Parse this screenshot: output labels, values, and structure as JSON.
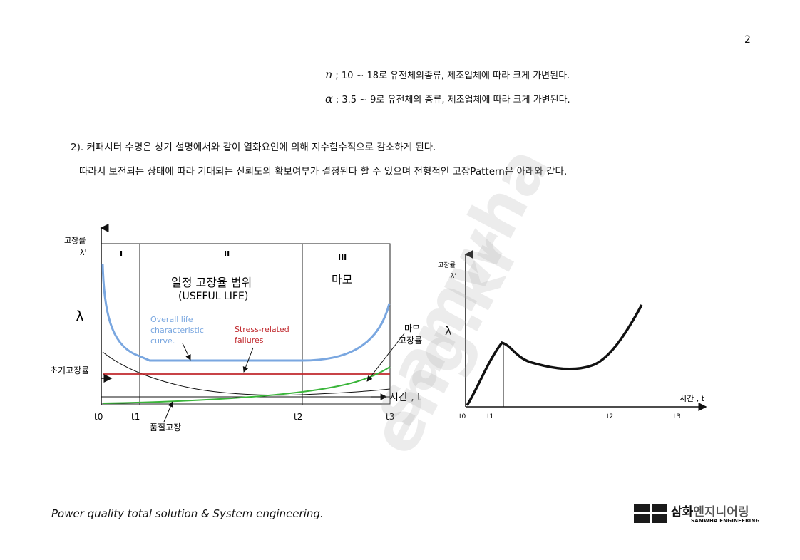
{
  "page_number": "2",
  "params": [
    {
      "symbol": "n",
      "text": "; 10 ~ 18로 유전체의종류, 제조업체에 따라 크게 가변된다."
    },
    {
      "symbol": "α",
      "text": "; 3.5 ~ 9로 유전체의 종류, 제조업체에 따라 크게 가변된다."
    }
  ],
  "paragraphs": [
    "2). 커패시터 수명은 상기 설명에서와 같이 열화요인에 의해 지수함수적으로 감소하게 된다.",
    "따라서 보전되는 상태에 따라 기대되는 신뢰도의 확보여부가 결정된다 할 수 있으며 전형적인 고장Pattern은 아래와 같다."
  ],
  "watermark": {
    "line1": "samwha",
    "line2": "eng.kr"
  },
  "left_chart": {
    "y_axis_label_1": "고장률",
    "y_axis_label_2": "λ'",
    "lambda_label": "λ",
    "early_failure_label": "초기고장률",
    "regions": [
      "I",
      "II",
      "III"
    ],
    "useful_life_ko": "일정 고장율 범위",
    "useful_life_en": "(USEFUL LIFE)",
    "wearout_ko": "마모",
    "overall_curve_label": [
      "Overall life",
      "characteristic",
      "curve."
    ],
    "stress_label": [
      "Stress-related",
      "failures"
    ],
    "wearout_failure_label": [
      "마모",
      "고장률"
    ],
    "quality_failure_label": "품질고장",
    "time_label": "시간 , t",
    "x_ticks": [
      "t0",
      "t1",
      "t2",
      "t3"
    ],
    "colors": {
      "overall": "#7aa7e0",
      "stress": "#c0282d",
      "wearout": "#3ab53a",
      "early": "#111111"
    }
  },
  "right_chart": {
    "y_axis_label_1": "고장률",
    "y_axis_label_2": "λ'",
    "lambda_label": "λ",
    "time_label": "시간 , t",
    "x_ticks": [
      "t0",
      "t1",
      "t2",
      "t3"
    ]
  },
  "footer": "Power quality total solution & System engineering.",
  "logo": {
    "korean_1": "삼화",
    "korean_2": "엔지니어링",
    "english": "SAMWHA ENGINEERING"
  }
}
